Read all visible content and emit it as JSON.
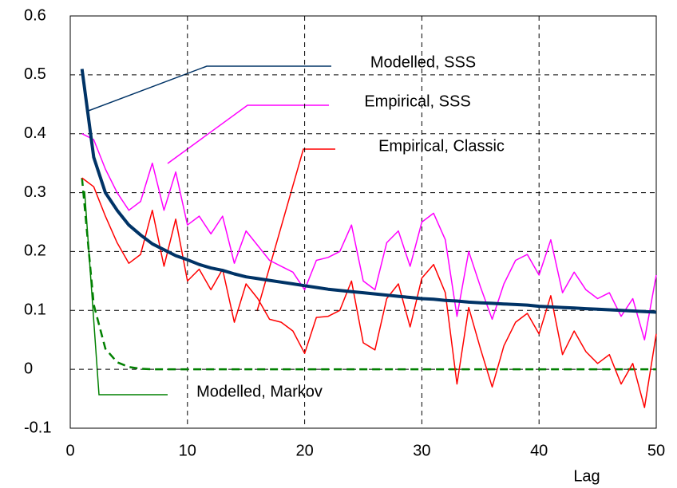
{
  "chart_data": {
    "type": "line",
    "x_label": "Lag",
    "x": [
      1,
      2,
      3,
      4,
      5,
      6,
      7,
      8,
      9,
      10,
      11,
      12,
      13,
      14,
      15,
      16,
      17,
      18,
      19,
      20,
      21,
      22,
      23,
      24,
      25,
      26,
      27,
      28,
      29,
      30,
      31,
      32,
      33,
      34,
      35,
      36,
      37,
      38,
      39,
      40,
      41,
      42,
      43,
      44,
      45,
      46,
      47,
      48,
      49,
      50
    ],
    "series": [
      {
        "name": "Modelled, SSS",
        "color": "#003366",
        "linewidth": 4,
        "line_style": "solid",
        "values": [
          0.51,
          0.36,
          0.3,
          0.27,
          0.245,
          0.228,
          0.213,
          0.203,
          0.193,
          0.186,
          0.178,
          0.172,
          0.168,
          0.162,
          0.157,
          0.154,
          0.151,
          0.148,
          0.145,
          0.142,
          0.139,
          0.136,
          0.134,
          0.132,
          0.13,
          0.128,
          0.126,
          0.124,
          0.122,
          0.12,
          0.119,
          0.117,
          0.116,
          0.114,
          0.113,
          0.112,
          0.111,
          0.11,
          0.109,
          0.107,
          0.106,
          0.105,
          0.104,
          0.103,
          0.102,
          0.101,
          0.1,
          0.099,
          0.098,
          0.097
        ]
      },
      {
        "name": "Empirical, SSS",
        "color": "#ff00ff",
        "linewidth": 1.5,
        "line_style": "solid",
        "values": [
          0.4,
          0.39,
          0.34,
          0.3,
          0.27,
          0.285,
          0.35,
          0.27,
          0.335,
          0.245,
          0.26,
          0.23,
          0.26,
          0.18,
          0.235,
          0.21,
          0.185,
          0.175,
          0.165,
          0.135,
          0.185,
          0.19,
          0.2,
          0.245,
          0.15,
          0.135,
          0.215,
          0.235,
          0.175,
          0.25,
          0.265,
          0.22,
          0.09,
          0.2,
          0.14,
          0.085,
          0.145,
          0.185,
          0.195,
          0.16,
          0.22,
          0.13,
          0.165,
          0.135,
          0.12,
          0.13,
          0.09,
          0.12,
          0.05,
          0.16
        ]
      },
      {
        "name": "Empirical, Classic",
        "color": "#ff0000",
        "linewidth": 1.5,
        "line_style": "solid",
        "values": [
          0.325,
          0.31,
          0.26,
          0.215,
          0.18,
          0.195,
          0.27,
          0.175,
          0.255,
          0.15,
          0.17,
          0.135,
          0.17,
          0.08,
          0.145,
          0.12,
          0.085,
          0.08,
          0.065,
          0.027,
          0.088,
          0.09,
          0.1,
          0.15,
          0.045,
          0.033,
          0.12,
          0.145,
          0.072,
          0.155,
          0.178,
          0.13,
          -0.025,
          0.105,
          0.035,
          -0.03,
          0.04,
          0.08,
          0.095,
          0.06,
          0.125,
          0.025,
          0.065,
          0.03,
          0.01,
          0.025,
          -0.025,
          0.01,
          -0.065,
          0.06
        ]
      },
      {
        "name": "Modelled, Markov",
        "color": "#008000",
        "linewidth": 2.5,
        "line_style": "dashed",
        "values": [
          0.325,
          0.11,
          0.035,
          0.012,
          0.004,
          0.001,
          0,
          0,
          0,
          0,
          0,
          0,
          0,
          0,
          0,
          0,
          0,
          0,
          0,
          0,
          0,
          0,
          0,
          0,
          0,
          0,
          0,
          0,
          0,
          0,
          0,
          0,
          0,
          0,
          0,
          0,
          0,
          0,
          0,
          0,
          0,
          0,
          0,
          0,
          0,
          0,
          0,
          0,
          0,
          0
        ]
      }
    ],
    "xlim": [
      0,
      50
    ],
    "xticks": [
      0,
      10,
      20,
      30,
      40,
      50
    ],
    "ylim": [
      -0.1,
      0.6
    ],
    "yticks": [
      -0.1,
      0,
      0.1,
      0.2,
      0.3,
      0.4,
      0.5,
      0.6
    ],
    "grid": true
  }
}
